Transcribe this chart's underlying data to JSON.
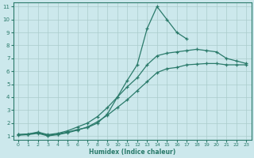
{
  "xlabel": "Humidex (Indice chaleur)",
  "bg_color": "#cce8ec",
  "grid_color": "#aacccc",
  "line_color": "#2a7a6a",
  "xlim": [
    -0.5,
    23.5
  ],
  "ylim": [
    0.7,
    11.3
  ],
  "xticks": [
    0,
    1,
    2,
    3,
    4,
    5,
    6,
    7,
    8,
    9,
    10,
    11,
    12,
    13,
    14,
    15,
    16,
    17,
    18,
    19,
    20,
    21,
    22,
    23
  ],
  "yticks": [
    1,
    2,
    3,
    4,
    5,
    6,
    7,
    8,
    9,
    10,
    11
  ],
  "line1_x": [
    0,
    1,
    2,
    3,
    4,
    5,
    6,
    7,
    8,
    9,
    10,
    11,
    12,
    13,
    14,
    15,
    16,
    17,
    18,
    19,
    20,
    21,
    22,
    23
  ],
  "line1_y": [
    1.1,
    1.15,
    1.25,
    1.05,
    1.15,
    1.3,
    1.5,
    1.65,
    2.0,
    2.7,
    4.0,
    5.3,
    6.5,
    9.3,
    11.0,
    10.0,
    9.0,
    8.5,
    null,
    null,
    null,
    null,
    null,
    null
  ],
  "line2_x": [
    0,
    1,
    2,
    3,
    4,
    5,
    6,
    7,
    8,
    9,
    10,
    11,
    12,
    13,
    14,
    15,
    16,
    17,
    18,
    19,
    20,
    21,
    22,
    23
  ],
  "line2_y": [
    1.1,
    1.15,
    1.3,
    1.1,
    1.2,
    1.4,
    1.7,
    2.0,
    2.5,
    3.2,
    4.0,
    4.8,
    5.5,
    6.5,
    7.2,
    7.4,
    7.5,
    7.6,
    7.7,
    7.6,
    7.5,
    7.0,
    6.8,
    6.6
  ],
  "line3_x": [
    0,
    1,
    2,
    3,
    4,
    5,
    6,
    7,
    8,
    9,
    10,
    11,
    12,
    13,
    14,
    15,
    16,
    17,
    18,
    19,
    20,
    21,
    22,
    23
  ],
  "line3_y": [
    1.05,
    1.1,
    1.2,
    1.0,
    1.1,
    1.25,
    1.45,
    1.7,
    2.1,
    2.6,
    3.2,
    3.8,
    4.5,
    5.2,
    5.9,
    6.2,
    6.3,
    6.5,
    6.55,
    6.6,
    6.6,
    6.5,
    6.5,
    6.5
  ]
}
